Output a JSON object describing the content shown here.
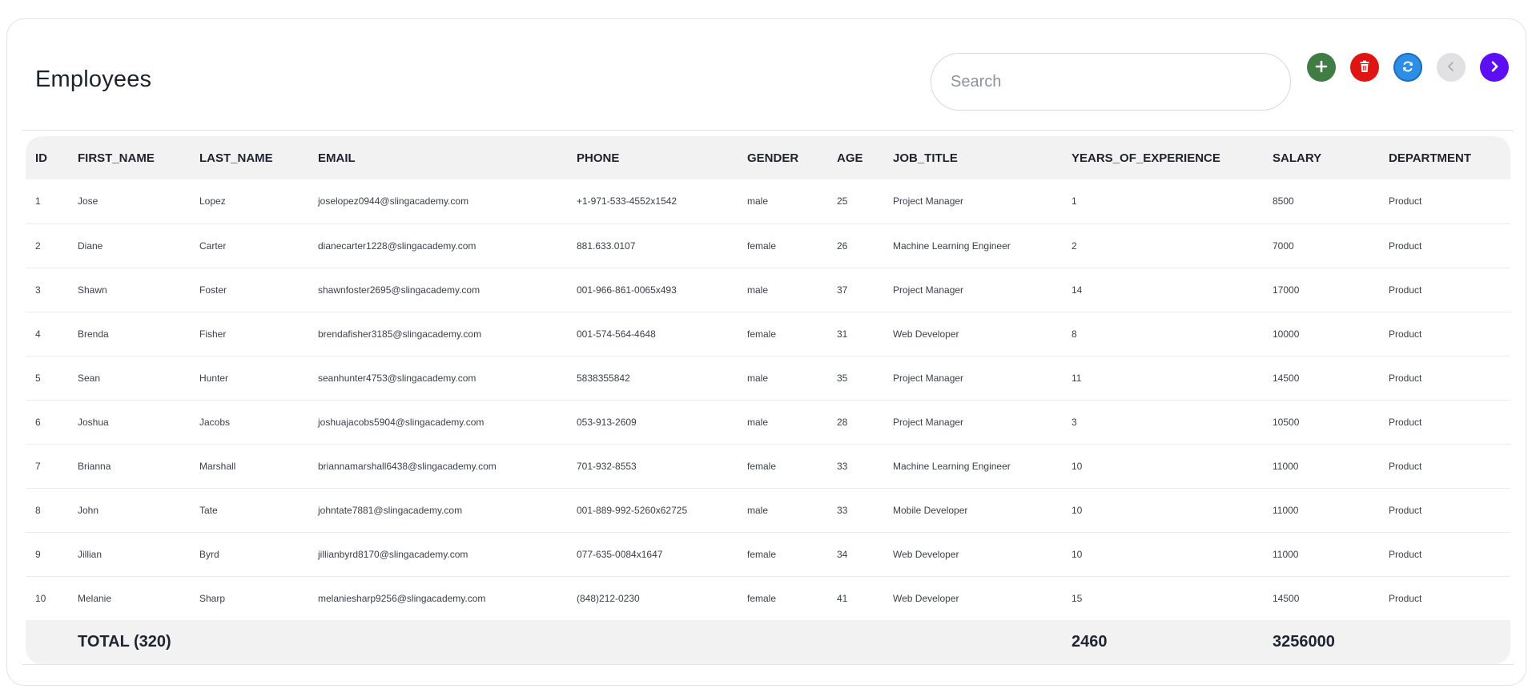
{
  "header": {
    "title": "Employees",
    "search_placeholder": "Search"
  },
  "toolbar": {
    "add_icon": "plus-icon",
    "delete_icon": "trash-icon",
    "refresh_icon": "refresh-icon",
    "prev_icon": "chevron-left-icon",
    "next_icon": "chevron-right-icon",
    "colors": {
      "add": "#3f7d45",
      "delete": "#e11414",
      "refresh": "#2d8ee6",
      "prev_disabled": "#e1e1e3",
      "next": "#5b0ff2"
    }
  },
  "table": {
    "columns": [
      "ID",
      "FIRST_NAME",
      "LAST_NAME",
      "EMAIL",
      "PHONE",
      "GENDER",
      "AGE",
      "JOB_TITLE",
      "YEARS_OF_EXPERIENCE",
      "SALARY",
      "DEPARTMENT"
    ],
    "rows": [
      [
        "1",
        "Jose",
        "Lopez",
        "joselopez0944@slingacademy.com",
        "+1-971-533-4552x1542",
        "male",
        "25",
        "Project Manager",
        "1",
        "8500",
        "Product"
      ],
      [
        "2",
        "Diane",
        "Carter",
        "dianecarter1228@slingacademy.com",
        "881.633.0107",
        "female",
        "26",
        "Machine Learning Engineer",
        "2",
        "7000",
        "Product"
      ],
      [
        "3",
        "Shawn",
        "Foster",
        "shawnfoster2695@slingacademy.com",
        "001-966-861-0065x493",
        "male",
        "37",
        "Project Manager",
        "14",
        "17000",
        "Product"
      ],
      [
        "4",
        "Brenda",
        "Fisher",
        "brendafisher3185@slingacademy.com",
        "001-574-564-4648",
        "female",
        "31",
        "Web Developer",
        "8",
        "10000",
        "Product"
      ],
      [
        "5",
        "Sean",
        "Hunter",
        "seanhunter4753@slingacademy.com",
        "5838355842",
        "male",
        "35",
        "Project Manager",
        "11",
        "14500",
        "Product"
      ],
      [
        "6",
        "Joshua",
        "Jacobs",
        "joshuajacobs5904@slingacademy.com",
        "053-913-2609",
        "male",
        "28",
        "Project Manager",
        "3",
        "10500",
        "Product"
      ],
      [
        "7",
        "Brianna",
        "Marshall",
        "briannamarshall6438@slingacademy.com",
        "701-932-8553",
        "female",
        "33",
        "Machine Learning Engineer",
        "10",
        "11000",
        "Product"
      ],
      [
        "8",
        "John",
        "Tate",
        "johntate7881@slingacademy.com",
        "001-889-992-5260x62725",
        "male",
        "33",
        "Mobile Developer",
        "10",
        "11000",
        "Product"
      ],
      [
        "9",
        "Jillian",
        "Byrd",
        "jillianbyrd8170@slingacademy.com",
        "077-635-0084x1647",
        "female",
        "34",
        "Web Developer",
        "10",
        "11000",
        "Product"
      ],
      [
        "10",
        "Melanie",
        "Sharp",
        "melaniesharp9256@slingacademy.com",
        "(848)212-0230",
        "female",
        "41",
        "Web Developer",
        "15",
        "14500",
        "Product"
      ]
    ],
    "footer": {
      "total_label": "TOTAL (320)",
      "years_total": "2460",
      "salary_total": "3256000"
    }
  }
}
